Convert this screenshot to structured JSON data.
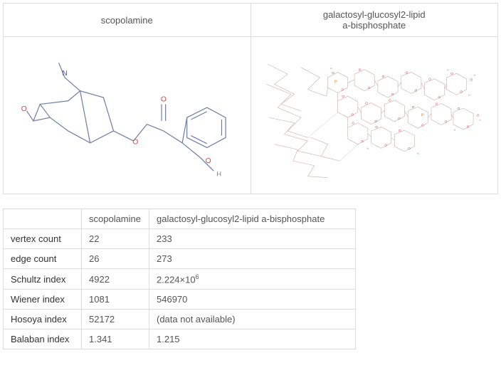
{
  "compounds": {
    "col1": {
      "name": "scopolamine",
      "name_multiline": "scopolamine"
    },
    "col2": {
      "name": "galactosyl-glucosyl2-lipid a-bisphosphate",
      "line1": "galactosyl-glucosyl2-lipid",
      "line2": "a-bisphosphate"
    }
  },
  "properties": {
    "rows": [
      {
        "label": "vertex count",
        "col1": "22",
        "col2": "233"
      },
      {
        "label": "edge count",
        "col1": "26",
        "col2": "273"
      },
      {
        "label": "Schultz index",
        "col1": "4922",
        "col2_html": "2.224×10<sup>6</sup>"
      },
      {
        "label": "Wiener index",
        "col1": "1081",
        "col2": "546970"
      },
      {
        "label": "Hosoya index",
        "col1": "52172",
        "col2": "(data not available)",
        "col2_unavailable": true
      },
      {
        "label": "Balaban index",
        "col1": "1.341",
        "col2": "1.215"
      }
    ]
  },
  "structure_style": {
    "bond_color": "#6e7fa8",
    "atom_o_color": "#d94545",
    "atom_n_color": "#4a5aa8",
    "atom_h_color": "#888",
    "atom_p_color": "#d98030",
    "bond_width": 1.3,
    "font_size": 10
  }
}
